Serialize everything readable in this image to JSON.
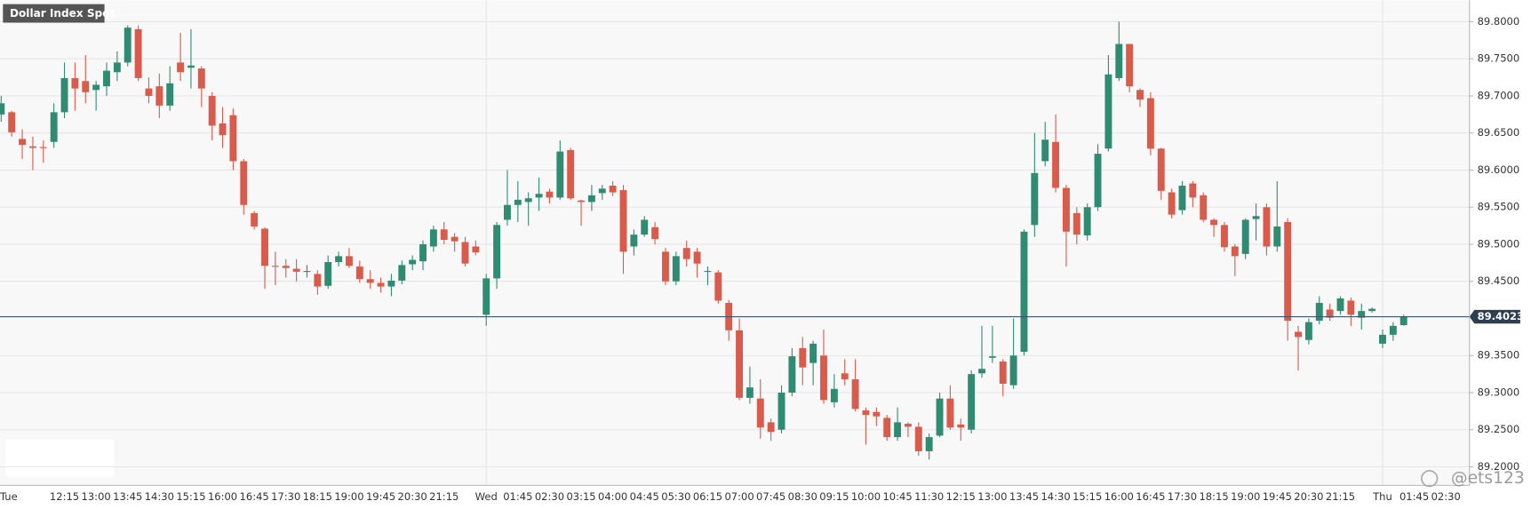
{
  "chart_data": {
    "type": "candlestick",
    "title": "Dollar Index Spot",
    "watermark": "@ets123",
    "up_color": "#2f8c72",
    "down_color": "#d95b4b",
    "current_price": 89.4023,
    "current_price_color": "#3b5670",
    "ylim": [
      89.175,
      89.829
    ],
    "yticks": [
      {
        "value": 89.2,
        "label": "89.2000"
      },
      {
        "value": 89.25,
        "label": "89.2500"
      },
      {
        "value": 89.3,
        "label": "89.3000"
      },
      {
        "value": 89.35,
        "label": "89.3500"
      },
      {
        "value": 89.45,
        "label": "89.4500"
      },
      {
        "value": 89.5,
        "label": "89.5000"
      },
      {
        "value": 89.55,
        "label": "89.5500"
      },
      {
        "value": 89.6,
        "label": "89.6000"
      },
      {
        "value": 89.65,
        "label": "89.6500"
      },
      {
        "value": 89.7,
        "label": "89.7000"
      },
      {
        "value": 89.75,
        "label": "89.7500"
      },
      {
        "value": 89.8,
        "label": "89.8000"
      }
    ],
    "grid": true,
    "categories": [
      "Tue",
      null,
      null,
      null,
      null,
      null,
      "12:15",
      null,
      null,
      "13:00",
      null,
      null,
      "13:45",
      null,
      null,
      "14:30",
      null,
      null,
      "15:15",
      null,
      null,
      "16:00",
      null,
      null,
      "16:45",
      null,
      null,
      "17:30",
      null,
      null,
      "18:15",
      null,
      null,
      "19:00",
      null,
      null,
      "19:45",
      null,
      null,
      "20:30",
      null,
      null,
      "21:15",
      null,
      null,
      null,
      "Wed",
      null,
      null,
      "01:45",
      null,
      null,
      "02:30",
      null,
      null,
      "03:15",
      null,
      null,
      "04:00",
      null,
      null,
      "04:45",
      null,
      null,
      "05:30",
      null,
      null,
      "06:15",
      null,
      null,
      "07:00",
      null,
      null,
      "07:45",
      null,
      null,
      "08:30",
      null,
      null,
      "09:15",
      null,
      null,
      "10:00",
      null,
      null,
      "10:45",
      null,
      null,
      "11:30",
      null,
      null,
      "12:15",
      null,
      null,
      "13:00",
      null,
      null,
      "13:45",
      null,
      null,
      "14:30",
      null,
      null,
      "15:15",
      null,
      null,
      "16:00",
      null,
      null,
      "16:45",
      null,
      null,
      "17:30",
      null,
      null,
      "18:15",
      null,
      null,
      "19:00",
      null,
      null,
      "19:45",
      null,
      null,
      "20:30",
      null,
      null,
      "21:15",
      null,
      null,
      null,
      "Thu",
      null,
      null,
      "01:45",
      null,
      null,
      "02:30"
    ],
    "open": [
      89.675,
      89.678,
      89.642,
      89.632,
      89.631,
      89.638,
      89.678,
      89.724,
      89.72,
      89.708,
      89.713,
      89.732,
      89.745,
      89.79,
      89.71,
      89.713,
      89.687,
      89.745,
      89.738,
      89.737,
      89.7,
      89.663,
      89.674,
      89.612,
      89.542,
      89.521,
      89.471,
      89.471,
      89.467,
      89.463,
      89.46,
      89.444,
      89.476,
      89.484,
      89.47,
      89.453,
      89.448,
      89.443,
      89.451,
      89.473,
      89.477,
      89.497,
      89.52,
      89.51,
      89.503,
      89.497,
      89.405,
      89.454,
      89.533,
      89.553,
      89.557,
      89.563,
      89.571,
      89.563,
      89.627,
      89.559,
      89.557,
      89.569,
      89.579,
      89.573,
      89.497,
      89.513,
      89.523,
      89.49,
      89.45,
      89.495,
      89.49,
      89.463,
      89.462,
      89.421,
      89.384,
      89.293,
      89.292,
      89.26,
      89.25,
      89.3,
      89.36,
      89.34,
      89.35,
      89.287,
      89.326,
      89.318,
      89.276,
      89.274,
      89.266,
      89.24,
      89.258,
      89.254,
      89.221,
      89.242,
      89.292,
      89.257,
      89.25,
      89.326,
      89.347,
      89.342,
      89.31,
      89.355,
      89.526,
      89.612,
      89.638,
      89.576,
      89.542,
      89.512,
      89.55,
      89.629,
      89.724,
      89.77,
      89.708,
      89.697,
      89.629,
      89.57,
      89.546,
      89.582,
      89.566,
      89.533,
      89.526,
      89.497,
      89.487,
      89.534,
      89.55,
      89.497,
      89.53,
      89.382,
      89.371,
      89.397,
      89.412,
      89.41,
      89.424,
      89.401,
      89.41,
      89.366,
      89.378,
      89.391,
      null,
      null,
      null,
      null
    ],
    "high": [
      89.7,
      89.68,
      89.655,
      89.645,
      89.64,
      89.69,
      89.745,
      89.745,
      89.755,
      89.72,
      89.745,
      89.76,
      89.795,
      89.795,
      89.725,
      89.73,
      89.74,
      89.785,
      89.79,
      89.74,
      89.705,
      89.685,
      89.683,
      89.615,
      89.545,
      89.523,
      89.49,
      89.48,
      89.48,
      89.472,
      89.465,
      89.485,
      89.49,
      89.495,
      89.478,
      89.465,
      89.455,
      89.46,
      89.478,
      89.485,
      89.505,
      89.525,
      89.53,
      89.515,
      89.51,
      89.505,
      89.46,
      89.53,
      89.6,
      89.585,
      89.57,
      89.59,
      89.575,
      89.64,
      89.63,
      89.56,
      89.58,
      89.58,
      89.585,
      89.58,
      89.52,
      89.538,
      89.53,
      89.495,
      89.49,
      89.505,
      89.495,
      89.47,
      89.465,
      89.425,
      89.4,
      89.335,
      89.318,
      89.265,
      89.31,
      89.36,
      89.375,
      89.37,
      89.385,
      89.325,
      89.345,
      89.345,
      89.28,
      89.28,
      89.27,
      89.28,
      89.26,
      89.26,
      89.245,
      89.3,
      89.31,
      89.265,
      89.33,
      89.39,
      89.39,
      89.345,
      89.4,
      89.52,
      89.65,
      89.665,
      89.675,
      89.58,
      89.55,
      89.555,
      89.635,
      89.755,
      89.8,
      89.77,
      89.71,
      89.705,
      89.63,
      89.575,
      89.585,
      89.585,
      89.57,
      89.535,
      89.53,
      89.5,
      89.535,
      89.555,
      89.555,
      89.585,
      89.535,
      89.39,
      89.4,
      89.43,
      89.42,
      89.43,
      89.428,
      89.42,
      89.415,
      89.385,
      89.395,
      89.405,
      null,
      null,
      null,
      null
    ],
    "low": [
      89.665,
      89.645,
      89.615,
      89.6,
      89.61,
      89.63,
      89.67,
      89.68,
      89.69,
      89.68,
      89.7,
      89.72,
      89.74,
      89.72,
      89.69,
      89.67,
      89.68,
      89.72,
      89.71,
      89.685,
      89.64,
      89.63,
      89.6,
      89.54,
      89.52,
      89.44,
      89.445,
      89.455,
      89.45,
      89.455,
      89.432,
      89.44,
      89.47,
      89.468,
      89.448,
      89.44,
      89.435,
      89.43,
      89.446,
      89.465,
      89.465,
      89.49,
      89.5,
      89.49,
      89.47,
      89.485,
      89.39,
      89.44,
      89.525,
      89.53,
      89.525,
      89.545,
      89.555,
      89.56,
      89.56,
      89.525,
      89.545,
      89.56,
      89.565,
      89.46,
      89.485,
      89.51,
      89.5,
      89.445,
      89.445,
      89.47,
      89.455,
      89.445,
      89.42,
      89.37,
      89.29,
      89.285,
      89.238,
      89.235,
      89.245,
      89.295,
      89.31,
      89.31,
      89.285,
      89.28,
      89.31,
      89.275,
      89.23,
      89.255,
      89.235,
      89.235,
      89.24,
      89.215,
      89.21,
      89.24,
      89.25,
      89.235,
      89.245,
      89.32,
      89.34,
      89.295,
      89.305,
      89.35,
      89.51,
      89.605,
      89.57,
      89.47,
      89.5,
      89.505,
      89.545,
      89.625,
      89.72,
      89.705,
      89.685,
      89.62,
      89.56,
      89.535,
      89.54,
      89.55,
      89.53,
      89.51,
      89.49,
      89.457,
      89.48,
      89.505,
      89.485,
      89.49,
      89.37,
      89.33,
      89.365,
      89.392,
      89.397,
      89.405,
      89.39,
      89.385,
      89.408,
      89.36,
      89.37,
      89.39,
      null,
      null,
      null,
      null
    ],
    "close": [
      89.69,
      89.651,
      89.634,
      89.63,
      89.63,
      89.678,
      89.724,
      89.71,
      89.705,
      89.715,
      89.734,
      89.745,
      89.792,
      89.724,
      89.7,
      89.687,
      89.717,
      89.732,
      89.741,
      89.71,
      89.66,
      89.647,
      89.612,
      89.553,
      89.524,
      89.471,
      89.47,
      89.468,
      89.463,
      89.464,
      89.443,
      89.476,
      89.484,
      89.471,
      89.453,
      89.448,
      89.443,
      89.451,
      89.472,
      89.479,
      89.5,
      89.52,
      89.506,
      89.504,
      89.474,
      89.489,
      89.454,
      89.526,
      89.553,
      89.56,
      89.562,
      89.568,
      89.563,
      89.625,
      89.562,
      89.557,
      89.566,
      89.575,
      89.57,
      89.49,
      89.513,
      89.533,
      89.507,
      89.45,
      89.484,
      89.48,
      89.474,
      89.464,
      89.424,
      89.384,
      89.293,
      89.307,
      89.253,
      89.247,
      89.3,
      89.349,
      89.334,
      89.366,
      89.29,
      89.305,
      89.318,
      89.278,
      89.27,
      89.268,
      89.24,
      89.26,
      89.254,
      89.221,
      89.24,
      89.292,
      89.253,
      89.253,
      89.325,
      89.332,
      89.349,
      89.312,
      89.35,
      89.517,
      89.596,
      89.641,
      89.576,
      89.517,
      89.513,
      89.55,
      89.622,
      89.729,
      89.77,
      89.713,
      89.695,
      89.629,
      89.572,
      89.54,
      89.579,
      89.563,
      89.533,
      89.526,
      89.496,
      89.484,
      89.533,
      89.538,
      89.497,
      89.524,
      89.397,
      89.375,
      89.395,
      89.421,
      89.401,
      89.427,
      89.405,
      89.41,
      89.413,
      89.378,
      89.39,
      89.4023,
      null,
      null,
      null,
      null
    ]
  }
}
